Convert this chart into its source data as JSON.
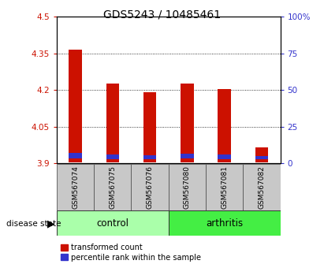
{
  "title": "GDS5243 / 10485461",
  "samples": [
    "GSM567074",
    "GSM567075",
    "GSM567076",
    "GSM567080",
    "GSM567081",
    "GSM567082"
  ],
  "red_top": [
    4.365,
    4.225,
    4.19,
    4.225,
    4.205,
    3.965
  ],
  "red_bottom": [
    3.905,
    3.905,
    3.905,
    3.905,
    3.905,
    3.905
  ],
  "blue_top": [
    3.942,
    3.937,
    3.932,
    3.94,
    3.937,
    3.93
  ],
  "blue_bottom": [
    3.92,
    3.918,
    3.916,
    3.92,
    3.918,
    3.916
  ],
  "ylim_left": [
    3.9,
    4.5
  ],
  "ylim_right": [
    0,
    100
  ],
  "yticks_left": [
    3.9,
    4.05,
    4.2,
    4.35,
    4.5
  ],
  "ytick_labels_left": [
    "3.9",
    "4.05",
    "4.2",
    "4.35",
    "4.5"
  ],
  "yticks_right": [
    0,
    25,
    50,
    75,
    100
  ],
  "ytick_labels_right": [
    "0",
    "25",
    "50",
    "75",
    "100%"
  ],
  "bar_color_red": "#CC1100",
  "bar_color_blue": "#3333CC",
  "control_color": "#AAFFAA",
  "arthritis_color": "#44EE44",
  "label_bg_color": "#C8C8C8",
  "tick_label_fontsize": 7.5,
  "title_fontsize": 10,
  "bar_width": 0.35
}
